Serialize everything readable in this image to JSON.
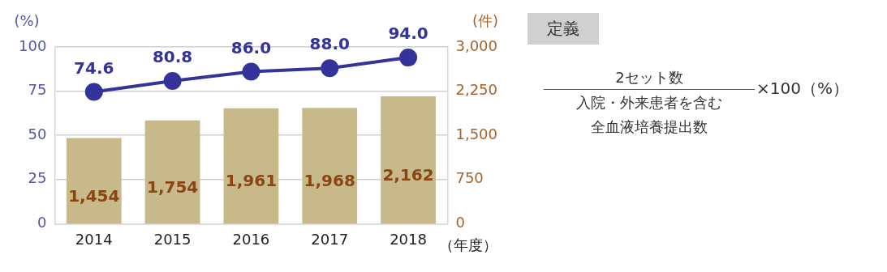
{
  "chart_data": {
    "type": "bar",
    "categories": [
      "2014",
      "2015",
      "2016",
      "2017",
      "2018"
    ],
    "xlabel": "（年度）",
    "ylabel": "(%)",
    "y2label": "(件)",
    "series": [
      {
        "axis": "y2",
        "color": "#c8b98a",
        "values": [
          1454,
          1754,
          1961,
          1968,
          2162
        ],
        "value_labels": [
          "1,454",
          "1,754",
          "1,961",
          "1,968",
          "2,162"
        ]
      },
      {
        "type": "line",
        "axis": "y",
        "color": "#333399",
        "marker": "circle",
        "values": [
          74.6,
          80.8,
          86.0,
          88.0,
          94.0
        ],
        "value_labels": [
          "74.6",
          "80.8",
          "86.0",
          "88.0",
          "94.0"
        ]
      }
    ],
    "ylim": [
      0,
      100
    ],
    "yticks": [
      0,
      25,
      50,
      75,
      100
    ],
    "y2lim": [
      0,
      3000
    ],
    "y2ticks": [
      {
        "value": 0,
        "label": "0"
      },
      {
        "value": 750,
        "label": "750"
      },
      {
        "value": 1500,
        "label": "1,500"
      },
      {
        "value": 2250,
        "label": "2,250"
      },
      {
        "value": 3000,
        "label": "3,000"
      }
    ],
    "grid": "y",
    "legend": false,
    "annotations": [
      "定義",
      "2セット数",
      "入院・外来患者を含む",
      "全血液培養提出数",
      "×100（%）"
    ]
  }
}
